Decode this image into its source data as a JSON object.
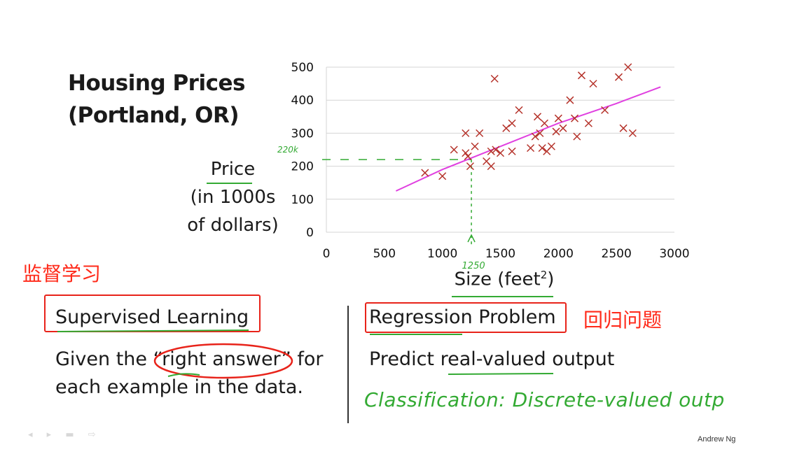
{
  "slide": {
    "title_line1": "Housing Prices",
    "title_line2": "(Portland, OR)",
    "credit": "Andrew Ng"
  },
  "chart_data": {
    "type": "scatter",
    "title": "Housing Prices (Portland, OR)",
    "xlabel": "Size (feet²)",
    "ylabel": "Price (in 1000s of dollars)",
    "xlim": [
      0,
      3000
    ],
    "ylim": [
      0,
      500
    ],
    "xticks": [
      "0",
      "500",
      "1000",
      "1500",
      "2000",
      "2500",
      "3000"
    ],
    "yticks": [
      "0",
      "100",
      "200",
      "300",
      "400",
      "500"
    ],
    "grid": true,
    "points": [
      [
        850,
        180
      ],
      [
        1000,
        170
      ],
      [
        1100,
        250
      ],
      [
        1200,
        300
      ],
      [
        1200,
        240
      ],
      [
        1220,
        230
      ],
      [
        1240,
        200
      ],
      [
        1280,
        260
      ],
      [
        1320,
        300
      ],
      [
        1380,
        215
      ],
      [
        1420,
        245
      ],
      [
        1420,
        200
      ],
      [
        1450,
        465
      ],
      [
        1460,
        250
      ],
      [
        1500,
        240
      ],
      [
        1550,
        315
      ],
      [
        1600,
        330
      ],
      [
        1600,
        245
      ],
      [
        1660,
        370
      ],
      [
        1760,
        255
      ],
      [
        1800,
        290
      ],
      [
        1820,
        350
      ],
      [
        1840,
        300
      ],
      [
        1860,
        255
      ],
      [
        1880,
        330
      ],
      [
        1900,
        245
      ],
      [
        1940,
        260
      ],
      [
        1980,
        305
      ],
      [
        2000,
        345
      ],
      [
        2040,
        315
      ],
      [
        2100,
        400
      ],
      [
        2140,
        345
      ],
      [
        2160,
        290
      ],
      [
        2200,
        475
      ],
      [
        2260,
        330
      ],
      [
        2300,
        450
      ],
      [
        2400,
        370
      ],
      [
        2520,
        470
      ],
      [
        2560,
        315
      ],
      [
        2600,
        500
      ],
      [
        2640,
        300
      ]
    ],
    "fit_line": [
      [
        600,
        125
      ],
      [
        1000,
        190
      ],
      [
        1500,
        260
      ],
      [
        2000,
        330
      ],
      [
        2500,
        390
      ],
      [
        2880,
        440
      ]
    ],
    "annotations": {
      "x_marker": "1250",
      "y_marker": "220k"
    },
    "colors": {
      "points": "#b5322a",
      "fit_line": "#e040e0",
      "annotation": "#33aa33",
      "grid": "#d4d4d4"
    }
  },
  "left_section": {
    "cn_label": "监督学习",
    "heading": "Supervised Learning",
    "line1_before": "Given the ",
    "line1_highlight": "“right answer”",
    "line1_after": " for",
    "line2": "each example in the data."
  },
  "right_section": {
    "cn_label": "回归问题",
    "heading": "Regression Problem",
    "text": "Predict real-valued output",
    "handwritten_note": "Classification: Discrete-valued outp"
  }
}
